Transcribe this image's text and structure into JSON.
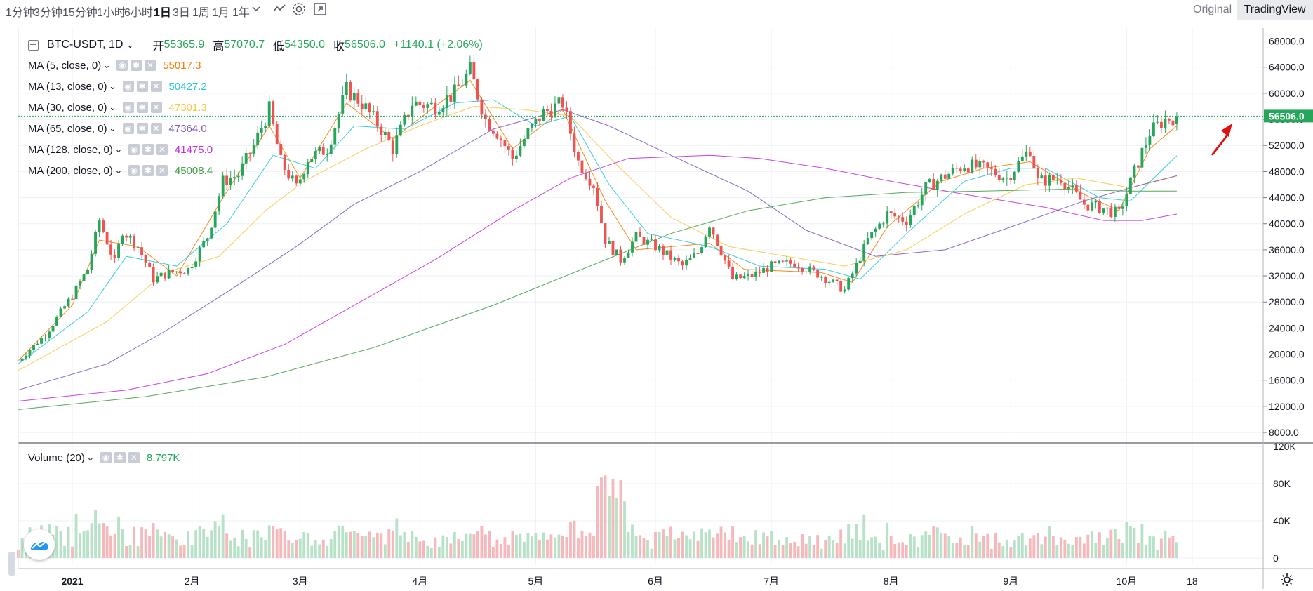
{
  "toolbar": {
    "timeframes": [
      "1分钟",
      "3分钟",
      "15分钟",
      "1小时",
      "6小时",
      "1日",
      "3日",
      "1周",
      "1月",
      "1年"
    ],
    "active_timeframe": "1日",
    "view_original": "Original",
    "view_tradingview": "TradingView"
  },
  "header": {
    "symbol": "BTC-USDT, 1D",
    "open_label": "开",
    "open": "55365.9",
    "high_label": "高",
    "high": "57070.7",
    "low_label": "低",
    "low": "54350.0",
    "close_label": "收",
    "close": "56506.0",
    "change": "+1140.1 (+2.06%)"
  },
  "indicators": [
    {
      "name": "MA (5, close, 0)",
      "value": "55017.3",
      "color": "#f57c00"
    },
    {
      "name": "MA (13, close, 0)",
      "value": "50427.2",
      "color": "#26c6da"
    },
    {
      "name": "MA (30, close, 0)",
      "value": "47301.3",
      "color": "#f9c740"
    },
    {
      "name": "MA (65, close, 0)",
      "value": "47364.0",
      "color": "#7e57c2"
    },
    {
      "name": "MA (128, close, 0)",
      "value": "41475.0",
      "color": "#c12ee0"
    },
    {
      "name": "MA (200, close, 0)",
      "value": "45008.4",
      "color": "#43a047"
    }
  ],
  "volume_indicator": {
    "name": "Volume (20)",
    "value": "8.797K"
  },
  "colors": {
    "up": "#26a65b",
    "down": "#ef5350",
    "vol_up": "#b8e2c8",
    "vol_down": "#f7b8bb",
    "price_tag": "#26a65b",
    "grid": "#eef1f5"
  },
  "chart_data": {
    "type": "candlestick",
    "title": "BTC-USDT, 1D",
    "price_axis": {
      "ticks": [
        8000,
        12000,
        16000,
        20000,
        24000,
        28000,
        32000,
        36000,
        40000,
        44000,
        48000,
        52000,
        56000,
        60000,
        64000,
        68000
      ],
      "labels": [
        "8000.0",
        "12000.0",
        "16000.0",
        "20000.0",
        "24000.0",
        "28000.0",
        "32000.0",
        "36000.0",
        "40000.0",
        "44000.0",
        "48000.0",
        "52000.0",
        "56000.0",
        "60000.0",
        "64000.0",
        "68000.0"
      ],
      "range": [
        6500,
        70000
      ]
    },
    "volume_axis": {
      "ticks": [
        0,
        40000,
        80000,
        120000
      ],
      "labels": [
        "0",
        "40K",
        "80K",
        "120K"
      ],
      "range": [
        0,
        120000
      ]
    },
    "x_axis": {
      "labels": [
        "2021",
        "2月",
        "3月",
        "4月",
        "5月",
        "6月",
        "7月",
        "8月",
        "9月",
        "10月",
        "18"
      ],
      "bold_label": "2021"
    },
    "last_price": {
      "value": 56506.0,
      "label": "56506.0"
    },
    "close_series": [
      {
        "date": "2020-12-18",
        "close": 19000
      },
      {
        "date": "2020-12-25",
        "close": 23000
      },
      {
        "date": "2021-01-01",
        "close": 29000
      },
      {
        "date": "2021-01-05",
        "close": 33000
      },
      {
        "date": "2021-01-08",
        "close": 40500
      },
      {
        "date": "2021-01-12",
        "close": 34000
      },
      {
        "date": "2021-01-14",
        "close": 39000
      },
      {
        "date": "2021-01-18",
        "close": 36500
      },
      {
        "date": "2021-01-22",
        "close": 31500
      },
      {
        "date": "2021-01-26",
        "close": 32500
      },
      {
        "date": "2021-01-31",
        "close": 33000
      },
      {
        "date": "2021-02-05",
        "close": 38000
      },
      {
        "date": "2021-02-09",
        "close": 46500
      },
      {
        "date": "2021-02-13",
        "close": 47500
      },
      {
        "date": "2021-02-17",
        "close": 52000
      },
      {
        "date": "2021-02-21",
        "close": 57500
      },
      {
        "date": "2021-02-24",
        "close": 49500
      },
      {
        "date": "2021-02-28",
        "close": 45500
      },
      {
        "date": "2021-03-03",
        "close": 50000
      },
      {
        "date": "2021-03-08",
        "close": 51500
      },
      {
        "date": "2021-03-13",
        "close": 60500
      },
      {
        "date": "2021-03-17",
        "close": 58500
      },
      {
        "date": "2021-03-22",
        "close": 54500
      },
      {
        "date": "2021-03-25",
        "close": 51500
      },
      {
        "date": "2021-03-30",
        "close": 58500
      },
      {
        "date": "2021-04-05",
        "close": 58000
      },
      {
        "date": "2021-04-10",
        "close": 60000
      },
      {
        "date": "2021-04-14",
        "close": 63500
      },
      {
        "date": "2021-04-18",
        "close": 56000
      },
      {
        "date": "2021-04-21",
        "close": 54000
      },
      {
        "date": "2021-04-25",
        "close": 50000
      },
      {
        "date": "2021-04-29",
        "close": 54000
      },
      {
        "date": "2021-05-03",
        "close": 57000
      },
      {
        "date": "2021-05-08",
        "close": 58500
      },
      {
        "date": "2021-05-12",
        "close": 49500
      },
      {
        "date": "2021-05-16",
        "close": 46000
      },
      {
        "date": "2021-05-19",
        "close": 37500
      },
      {
        "date": "2021-05-23",
        "close": 34500
      },
      {
        "date": "2021-05-27",
        "close": 38000
      },
      {
        "date": "2021-06-01",
        "close": 36500
      },
      {
        "date": "2021-06-08",
        "close": 33500
      },
      {
        "date": "2021-06-12",
        "close": 35500
      },
      {
        "date": "2021-06-15",
        "close": 40000
      },
      {
        "date": "2021-06-21",
        "close": 31500
      },
      {
        "date": "2021-06-26",
        "close": 32000
      },
      {
        "date": "2021-07-01",
        "close": 33500
      },
      {
        "date": "2021-07-07",
        "close": 34000
      },
      {
        "date": "2021-07-14",
        "close": 32000
      },
      {
        "date": "2021-07-20",
        "close": 29800
      },
      {
        "date": "2021-07-26",
        "close": 37500
      },
      {
        "date": "2021-07-31",
        "close": 41500
      },
      {
        "date": "2021-08-05",
        "close": 40500
      },
      {
        "date": "2021-08-10",
        "close": 45500
      },
      {
        "date": "2021-08-14",
        "close": 47000
      },
      {
        "date": "2021-08-20",
        "close": 49000
      },
      {
        "date": "2021-08-25",
        "close": 48500
      },
      {
        "date": "2021-08-31",
        "close": 47000
      },
      {
        "date": "2021-09-06",
        "close": 51500
      },
      {
        "date": "2021-09-08",
        "close": 46500
      },
      {
        "date": "2021-09-14",
        "close": 47000
      },
      {
        "date": "2021-09-20",
        "close": 43000
      },
      {
        "date": "2021-09-24",
        "close": 42500
      },
      {
        "date": "2021-09-29",
        "close": 41500
      },
      {
        "date": "2021-10-03",
        "close": 48000
      },
      {
        "date": "2021-10-07",
        "close": 54000
      },
      {
        "date": "2021-10-11",
        "close": 56000
      },
      {
        "date": "2021-10-14",
        "close": 56506
      }
    ],
    "moving_averages": [
      {
        "name": "MA (5, close, 0)",
        "points": [
          [
            "2020-12-18",
            19000
          ],
          [
            "2021-01-01",
            27500
          ],
          [
            "2021-01-08",
            37500
          ],
          [
            "2021-01-18",
            36500
          ],
          [
            "2021-01-28",
            32000
          ],
          [
            "2021-02-09",
            44000
          ],
          [
            "2021-02-21",
            55000
          ],
          [
            "2021-03-01",
            47000
          ],
          [
            "2021-03-13",
            58500
          ],
          [
            "2021-03-25",
            53000
          ],
          [
            "2021-04-05",
            58000
          ],
          [
            "2021-04-14",
            62000
          ],
          [
            "2021-04-25",
            51500
          ],
          [
            "2021-05-08",
            57500
          ],
          [
            "2021-05-19",
            43500
          ],
          [
            "2021-05-27",
            36000
          ],
          [
            "2021-06-15",
            37000
          ],
          [
            "2021-06-24",
            33000
          ],
          [
            "2021-07-14",
            32500
          ],
          [
            "2021-07-22",
            31000
          ],
          [
            "2021-07-31",
            39500
          ],
          [
            "2021-08-14",
            46500
          ],
          [
            "2021-08-25",
            48500
          ],
          [
            "2021-09-06",
            49500
          ],
          [
            "2021-09-20",
            44500
          ],
          [
            "2021-09-29",
            42000
          ],
          [
            "2021-10-07",
            51500
          ],
          [
            "2021-10-14",
            55017
          ]
        ]
      },
      {
        "name": "MA (13, close, 0)",
        "points": [
          [
            "2020-12-18",
            18500
          ],
          [
            "2021-01-05",
            26500
          ],
          [
            "2021-01-15",
            35000
          ],
          [
            "2021-01-28",
            33500
          ],
          [
            "2021-02-10",
            40000
          ],
          [
            "2021-02-22",
            50500
          ],
          [
            "2021-03-05",
            48500
          ],
          [
            "2021-03-15",
            55000
          ],
          [
            "2021-03-28",
            54500
          ],
          [
            "2021-04-10",
            58500
          ],
          [
            "2021-04-20",
            59000
          ],
          [
            "2021-05-01",
            55000
          ],
          [
            "2021-05-10",
            56500
          ],
          [
            "2021-05-20",
            46000
          ],
          [
            "2021-05-30",
            38500
          ],
          [
            "2021-06-15",
            36500
          ],
          [
            "2021-06-28",
            33500
          ],
          [
            "2021-07-15",
            33000
          ],
          [
            "2021-07-24",
            31500
          ],
          [
            "2021-08-05",
            38500
          ],
          [
            "2021-08-20",
            46500
          ],
          [
            "2021-09-01",
            48500
          ],
          [
            "2021-09-10",
            48500
          ],
          [
            "2021-09-24",
            44000
          ],
          [
            "2021-10-02",
            43500
          ],
          [
            "2021-10-14",
            50427
          ]
        ]
      },
      {
        "name": "MA (30, close, 0)",
        "points": [
          [
            "2020-12-18",
            17500
          ],
          [
            "2021-01-10",
            25000
          ],
          [
            "2021-01-25",
            32500
          ],
          [
            "2021-02-08",
            35000
          ],
          [
            "2021-02-20",
            42000
          ],
          [
            "2021-03-02",
            46500
          ],
          [
            "2021-03-18",
            51500
          ],
          [
            "2021-04-01",
            55000
          ],
          [
            "2021-04-15",
            58000
          ],
          [
            "2021-04-28",
            57500
          ],
          [
            "2021-05-10",
            56500
          ],
          [
            "2021-05-22",
            49000
          ],
          [
            "2021-06-05",
            41000
          ],
          [
            "2021-06-20",
            36500
          ],
          [
            "2021-07-05",
            35000
          ],
          [
            "2021-07-20",
            33500
          ],
          [
            "2021-08-05",
            36000
          ],
          [
            "2021-08-20",
            41500
          ],
          [
            "2021-09-05",
            46000
          ],
          [
            "2021-09-18",
            47000
          ],
          [
            "2021-10-02",
            45500
          ],
          [
            "2021-10-14",
            47301
          ]
        ]
      },
      {
        "name": "MA (65, close, 0)",
        "points": [
          [
            "2020-12-18",
            14500
          ],
          [
            "2021-01-10",
            18500
          ],
          [
            "2021-01-25",
            23500
          ],
          [
            "2021-02-10",
            29500
          ],
          [
            "2021-02-28",
            36500
          ],
          [
            "2021-03-15",
            43000
          ],
          [
            "2021-04-01",
            48000
          ],
          [
            "2021-04-20",
            54500
          ],
          [
            "2021-05-08",
            57500
          ],
          [
            "2021-05-20",
            55000
          ],
          [
            "2021-06-05",
            50500
          ],
          [
            "2021-06-25",
            45000
          ],
          [
            "2021-07-10",
            39000
          ],
          [
            "2021-07-28",
            35000
          ],
          [
            "2021-08-15",
            36000
          ],
          [
            "2021-09-01",
            39500
          ],
          [
            "2021-09-20",
            43500
          ],
          [
            "2021-10-05",
            46000
          ],
          [
            "2021-10-14",
            47364
          ]
        ]
      },
      {
        "name": "MA (128, close, 0)",
        "points": [
          [
            "2020-12-18",
            12800
          ],
          [
            "2021-01-15",
            14500
          ],
          [
            "2021-02-05",
            17000
          ],
          [
            "2021-02-25",
            21500
          ],
          [
            "2021-03-15",
            27500
          ],
          [
            "2021-04-05",
            34500
          ],
          [
            "2021-04-25",
            42000
          ],
          [
            "2021-05-10",
            47000
          ],
          [
            "2021-05-25",
            50000
          ],
          [
            "2021-06-15",
            50500
          ],
          [
            "2021-06-28",
            50000
          ],
          [
            "2021-07-15",
            48500
          ],
          [
            "2021-08-01",
            46500
          ],
          [
            "2021-08-20",
            44500
          ],
          [
            "2021-09-10",
            42500
          ],
          [
            "2021-09-25",
            40500
          ],
          [
            "2021-10-05",
            40500
          ],
          [
            "2021-10-14",
            41475
          ]
        ]
      },
      {
        "name": "MA (200, close, 0)",
        "points": [
          [
            "2020-12-18",
            11500
          ],
          [
            "2021-01-20",
            13500
          ],
          [
            "2021-02-20",
            16500
          ],
          [
            "2021-03-20",
            21000
          ],
          [
            "2021-04-20",
            27500
          ],
          [
            "2021-05-15",
            33500
          ],
          [
            "2021-06-05",
            38500
          ],
          [
            "2021-06-25",
            42000
          ],
          [
            "2021-07-15",
            44000
          ],
          [
            "2021-08-05",
            44800
          ],
          [
            "2021-08-25",
            45000
          ],
          [
            "2021-09-15",
            45300
          ],
          [
            "2021-10-01",
            45000
          ],
          [
            "2021-10-14",
            45008
          ]
        ]
      }
    ]
  }
}
